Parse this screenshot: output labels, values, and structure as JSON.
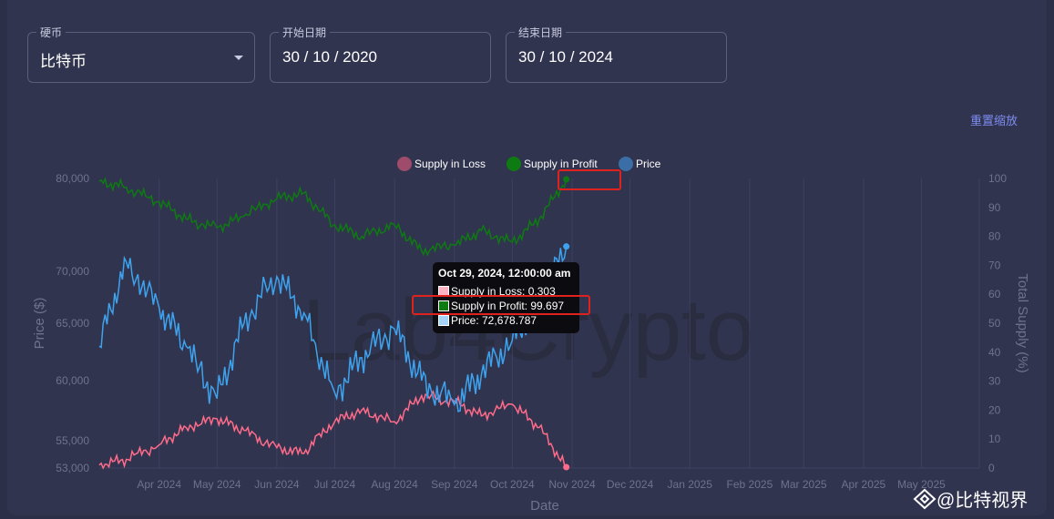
{
  "filters": {
    "coin": {
      "label": "硬币",
      "value": "比特币"
    },
    "start": {
      "label": "开始日期",
      "value": "30 / 10 / 2020"
    },
    "end": {
      "label": "结束日期",
      "value": "30 / 10 / 2024"
    }
  },
  "reset_zoom": "重置缩放",
  "watermark": "Lab4Crypto",
  "corner_mark": "@比特视界",
  "tooltip": {
    "title": "Oct 29, 2024, 12:00:00 am",
    "loss": "Supply in Loss: 0.303",
    "profit": "Supply in Profit: 99.697",
    "price": "Price: 72,678.787"
  },
  "colors": {
    "loss": "#ff6b8a",
    "profit": "#0e7a12",
    "price": "#3ea3ee",
    "highlight": "#e0221f"
  },
  "chart_data": {
    "type": "line",
    "xlabel": "Date",
    "ylabel_left": "Price ($)",
    "ylabel_right": "Total Supply (%)",
    "x_ticks": [
      "Apr 2024",
      "May 2024",
      "Jun 2024",
      "Jul 2024",
      "Aug 2024",
      "Sep 2024",
      "Oct 2024",
      "Nov 2024",
      "Dec 2024",
      "Jan 2025",
      "Feb 2025",
      "Mar 2025",
      "Apr 2025",
      "May 2025"
    ],
    "y_left_ticks": [
      53000,
      55000,
      60000,
      65000,
      70000,
      80000
    ],
    "y_left_tick_labels": [
      "53,000",
      "55,000",
      "60,000",
      "65,000",
      "70,000",
      "80,000"
    ],
    "y_right_ticks": [
      0,
      10,
      20,
      30,
      40,
      50,
      60,
      70,
      80,
      90,
      100
    ],
    "x_range": [
      "2024-03-01",
      "2025-05-31"
    ],
    "legend_position": "top-center",
    "grid": true,
    "dates": [
      "2024-03-01",
      "2024-03-15",
      "2024-04-01",
      "2024-04-15",
      "2024-05-01",
      "2024-05-15",
      "2024-06-01",
      "2024-06-15",
      "2024-07-01",
      "2024-07-15",
      "2024-08-01",
      "2024-08-15",
      "2024-09-01",
      "2024-09-15",
      "2024-10-01",
      "2024-10-15",
      "2024-10-29"
    ],
    "series": [
      {
        "name": "Supply in Loss",
        "axis": "right",
        "values": [
          1,
          3,
          8,
          14,
          17,
          13,
          7,
          5,
          16,
          20,
          16,
          25,
          23,
          18,
          22,
          14,
          0.303
        ]
      },
      {
        "name": "Supply in Profit",
        "axis": "right",
        "values": [
          99,
          97,
          92,
          86,
          83,
          87,
          93,
          95,
          84,
          80,
          84,
          75,
          77,
          82,
          78,
          86,
          99.697
        ]
      },
      {
        "name": "Price",
        "axis": "left",
        "values": [
          63000,
          71000,
          66500,
          63000,
          58500,
          65000,
          69500,
          66000,
          59000,
          62000,
          64500,
          60000,
          58000,
          60500,
          63500,
          67000,
          72678.787
        ]
      }
    ]
  }
}
